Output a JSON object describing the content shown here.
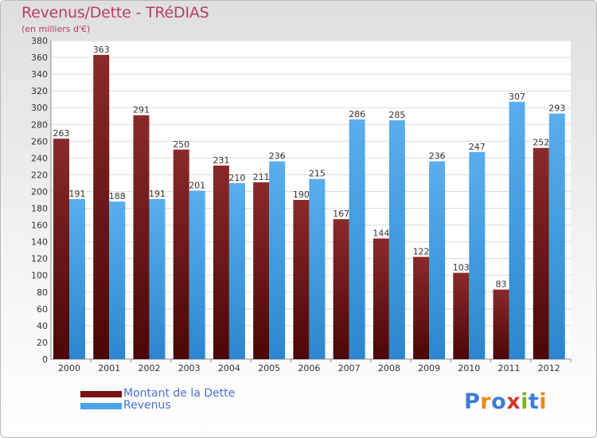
{
  "header": {
    "title": "Revenus/Dette - TRéDIAS",
    "subtitle": "(en milliers d'€)"
  },
  "legend": {
    "items": [
      {
        "label": "Montant de la Dette",
        "color": "#7a1212"
      },
      {
        "label": "Revenus",
        "color": "#4ba3e6"
      }
    ]
  },
  "logo": {
    "text": "Proxiti",
    "colors": [
      "#3b7fd4",
      "#e98a1c",
      "#3b7fd4",
      "#d8342c",
      "#7ab51d",
      "#3b7fd4",
      "#e98a1c"
    ]
  },
  "chart_data": {
    "type": "bar",
    "title": "Revenus/Dette - TRéDIAS",
    "subtitle": "(en milliers d'€)",
    "categories": [
      "2000",
      "2001",
      "2002",
      "2003",
      "2004",
      "2005",
      "2006",
      "2007",
      "2008",
      "2009",
      "2010",
      "2011",
      "2012"
    ],
    "series": [
      {
        "name": "Montant de la Dette",
        "color": "#7a1212",
        "values": [
          263,
          363,
          291,
          250,
          231,
          211,
          190,
          167,
          144,
          122,
          103,
          83,
          252
        ]
      },
      {
        "name": "Revenus",
        "color": "#4ba3e6",
        "values": [
          191,
          188,
          191,
          201,
          210,
          236,
          215,
          286,
          285,
          236,
          247,
          307,
          293
        ]
      }
    ],
    "ylim": [
      0,
      380
    ],
    "yticks": [
      0,
      20,
      40,
      60,
      80,
      100,
      120,
      140,
      160,
      180,
      200,
      220,
      240,
      260,
      280,
      300,
      320,
      340,
      360,
      380
    ],
    "grid": true,
    "legend_position": "bottom-left"
  }
}
